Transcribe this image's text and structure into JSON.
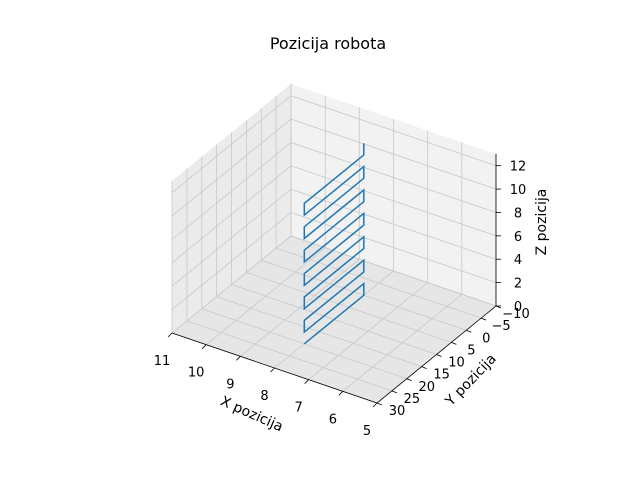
{
  "chart_data": {
    "type": "line",
    "projection": "3d",
    "title": "Pozicija robota",
    "xlabel": "X pozicija",
    "ylabel": "Y pozicija",
    "zlabel": "Z pozicija",
    "xlim": [
      5,
      11
    ],
    "ylim": [
      -10,
      30
    ],
    "zlim": [
      0,
      13
    ],
    "xticks": [
      5,
      6,
      7,
      8,
      9,
      10,
      11
    ],
    "yticks": [
      -10,
      -5,
      0,
      5,
      10,
      15,
      20,
      25,
      30
    ],
    "zticks": [
      0,
      2,
      4,
      6,
      8,
      10,
      12
    ],
    "xtick_labels": [
      "5",
      "6",
      "7",
      "8",
      "9",
      "10",
      "11"
    ],
    "ytick_labels": [
      "−10",
      "−5",
      "0",
      "5",
      "10",
      "15",
      "20",
      "25",
      "30"
    ],
    "ztick_labels": [
      "0",
      "2",
      "4",
      "6",
      "8",
      "10",
      "12"
    ],
    "grid": true,
    "colors": {
      "series": "#1f77b4",
      "pane_light": "#f2f2f2",
      "pane_mid": "#ebebeb",
      "pane_dark": "#e6e6e6",
      "grid": "#c8c8c8"
    },
    "series": [
      {
        "points": [
          [
            8,
            20,
            0
          ],
          [
            8,
            0,
            0
          ],
          [
            8,
            0,
            1
          ],
          [
            8,
            20,
            1
          ],
          [
            8,
            20,
            2
          ],
          [
            8,
            0,
            2
          ],
          [
            8,
            0,
            3
          ],
          [
            8,
            20,
            3
          ],
          [
            8,
            20,
            4
          ],
          [
            8,
            0,
            4
          ],
          [
            8,
            0,
            5
          ],
          [
            8,
            20,
            5
          ],
          [
            8,
            20,
            6
          ],
          [
            8,
            0,
            6
          ],
          [
            8,
            0,
            7
          ],
          [
            8,
            20,
            7
          ],
          [
            8,
            20,
            8
          ],
          [
            8,
            0,
            8
          ],
          [
            8,
            0,
            9
          ],
          [
            8,
            20,
            9
          ],
          [
            8,
            20,
            10
          ],
          [
            8,
            0,
            10
          ],
          [
            8,
            0,
            11
          ],
          [
            8,
            20,
            11
          ],
          [
            8,
            20,
            12
          ],
          [
            8,
            0,
            12
          ],
          [
            8,
            0,
            13
          ]
        ]
      }
    ]
  }
}
